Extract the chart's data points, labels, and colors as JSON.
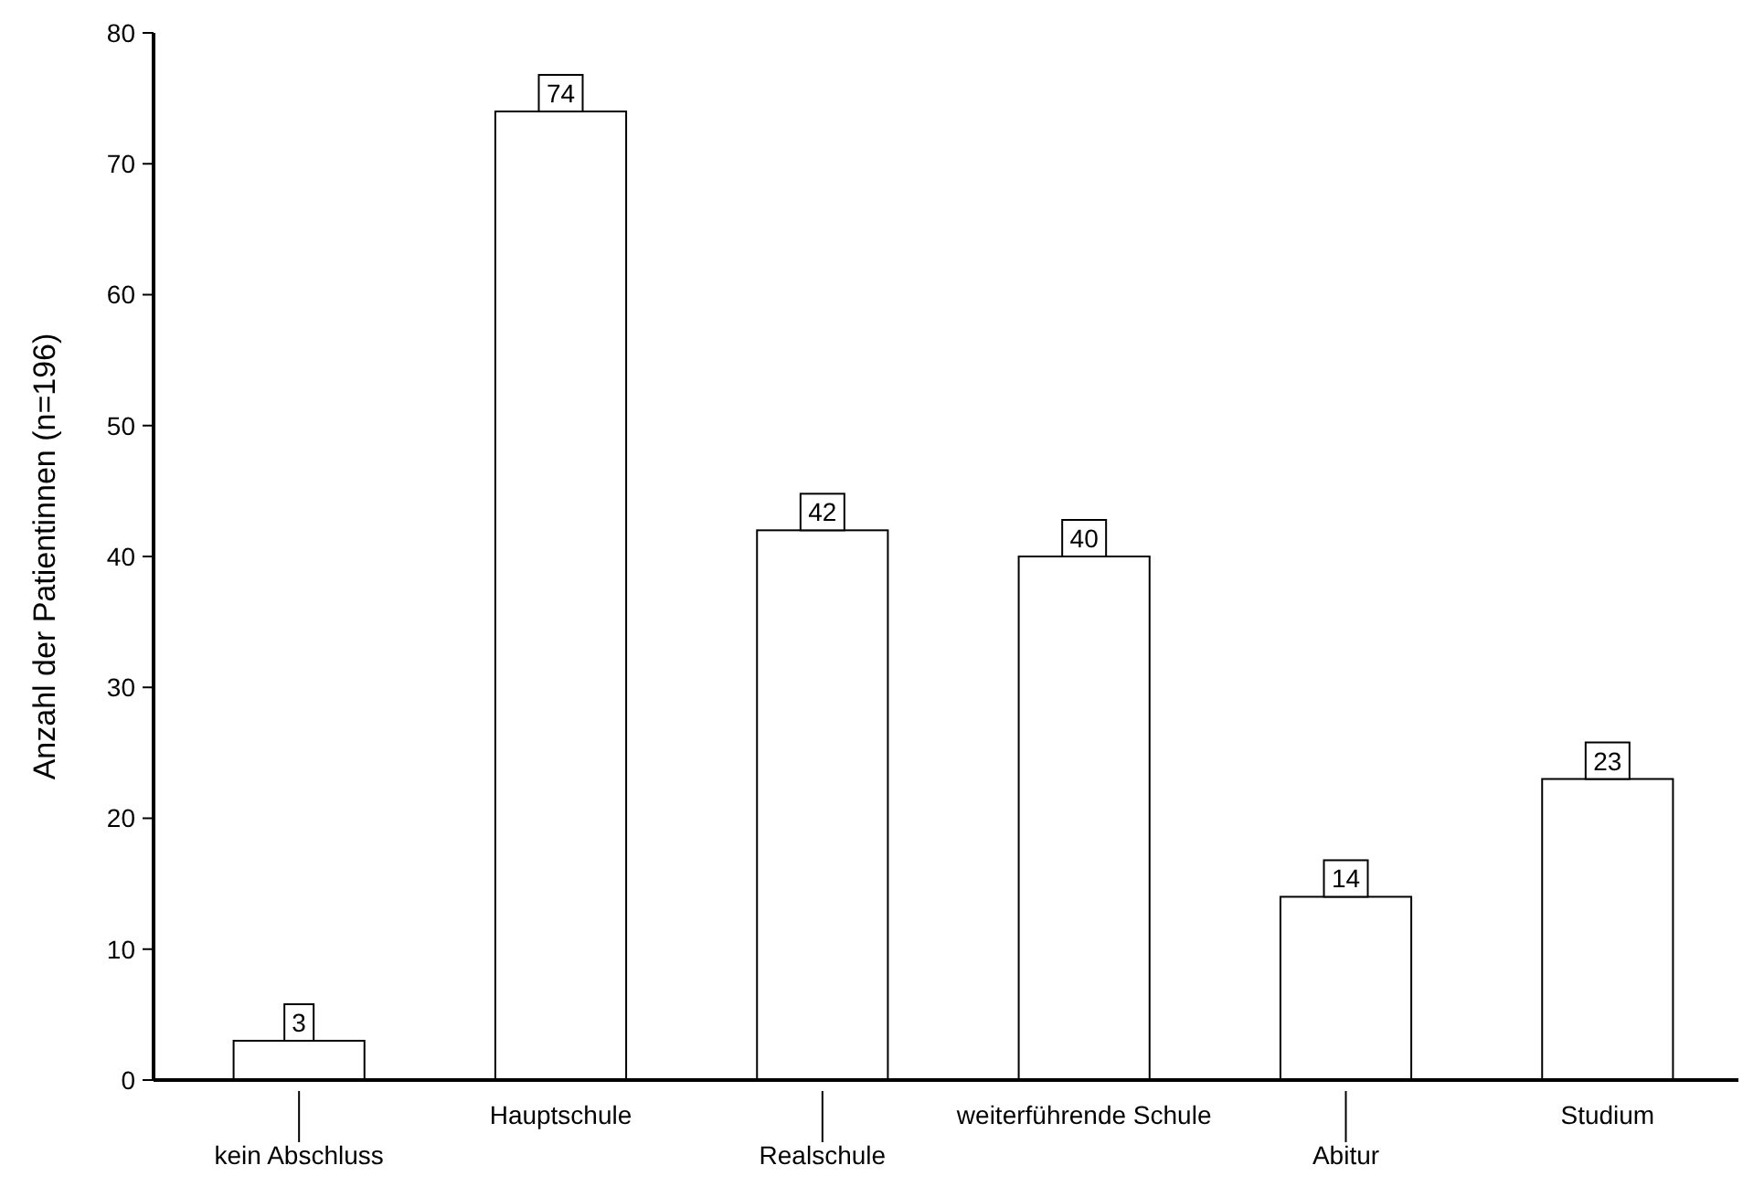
{
  "chart_data": {
    "type": "bar",
    "ylabel": "Anzahl der Patientinnen (n=196)",
    "categories": [
      "kein Abschluss",
      "Hauptschule",
      "Realschule",
      "weiterführende Schule",
      "Abitur",
      "Studium"
    ],
    "values": [
      3,
      74,
      42,
      40,
      14,
      23
    ],
    "color": "#ffffff",
    "ylim": [
      0,
      80
    ],
    "yticks": [
      0,
      10,
      20,
      30,
      40,
      50,
      60,
      70,
      80
    ],
    "grid": false,
    "data_labels": true
  }
}
